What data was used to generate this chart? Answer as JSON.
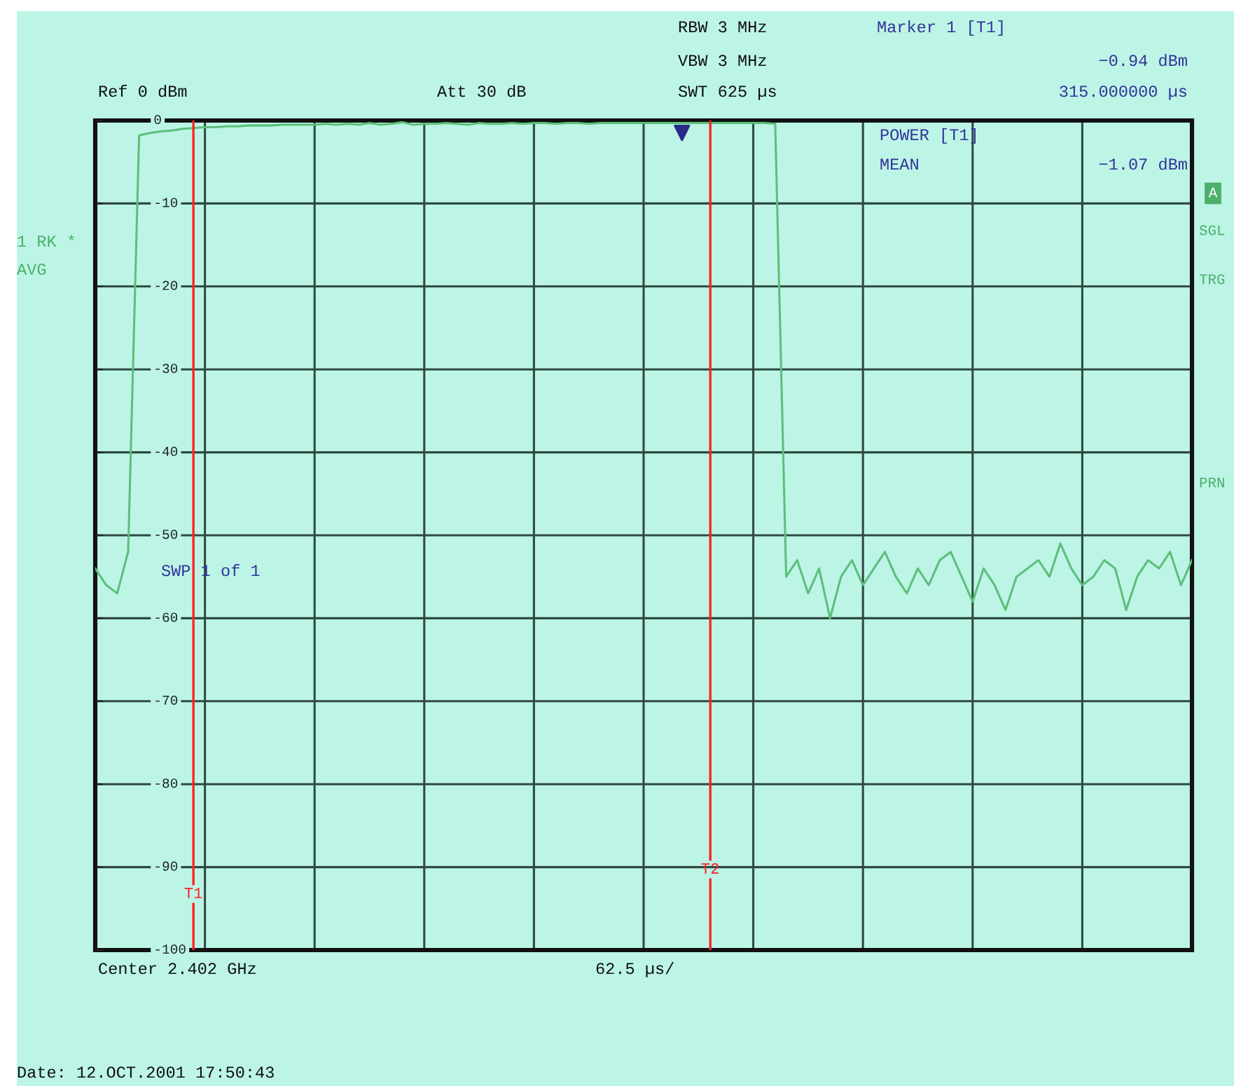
{
  "chart_data": {
    "type": "line",
    "categories": [
      null,
      null,
      null,
      null,
      null,
      null,
      null,
      null,
      null,
      null,
      null,
      null,
      null,
      null,
      null,
      null,
      null,
      null,
      null,
      null,
      null,
      null,
      null,
      null,
      null,
      null,
      null,
      null,
      null,
      null,
      null,
      null,
      null,
      null,
      null,
      null,
      null,
      null,
      null,
      null,
      null,
      null,
      null,
      null,
      null,
      null,
      null,
      null,
      null,
      null,
      null,
      null,
      null,
      null,
      null,
      null,
      null,
      null,
      null,
      null,
      null,
      null,
      null,
      null,
      null,
      null,
      null,
      null,
      null,
      null,
      null,
      null,
      null,
      null,
      null,
      null,
      null,
      null,
      null,
      null,
      null,
      null,
      null,
      null,
      null,
      null,
      null,
      null,
      null,
      null,
      null,
      null,
      null,
      null,
      null,
      null,
      null,
      null,
      null,
      null,
      null
    ],
    "series": [
      {
        "color": "#5cbf7a",
        "values": [
          -54,
          -56,
          -57,
          -52,
          -1.8,
          -1.5,
          -1.3,
          -1.2,
          -1.0,
          -0.9,
          -0.8,
          -0.8,
          -0.7,
          -0.7,
          -0.6,
          -0.6,
          -0.6,
          -0.5,
          -0.5,
          -0.5,
          -0.5,
          -0.4,
          -0.5,
          -0.4,
          -0.5,
          -0.3,
          -0.5,
          -0.4,
          -0.2,
          -0.5,
          -0.4,
          -0.4,
          -0.3,
          -0.4,
          -0.5,
          -0.3,
          -0.4,
          -0.4,
          -0.3,
          -0.4,
          -0.3,
          -0.3,
          -0.4,
          -0.3,
          -0.3,
          -0.4,
          -0.3,
          -0.3,
          -0.3,
          -0.3,
          -0.3,
          -0.3,
          -0.3,
          -0.3,
          -0.3,
          -0.3,
          -0.3,
          -0.3,
          -0.3,
          -0.3,
          -0.3,
          -0.3,
          -0.4,
          -55,
          -53,
          -57,
          -54,
          -60,
          -55,
          -53,
          -56,
          -54,
          -52,
          -55,
          -57,
          -54,
          -56,
          -53,
          -52,
          -55,
          -58,
          -54,
          -56,
          -59,
          -55,
          -54,
          -53,
          -55,
          -51,
          -54,
          -56,
          -55,
          -53,
          -54,
          -59,
          -55,
          -53,
          -54,
          -52,
          -56,
          -53
        ]
      }
    ],
    "ylim": [
      -100,
      0
    ],
    "yticks": [
      0,
      -10,
      -20,
      -30,
      -40,
      -50,
      -60,
      -70,
      -80,
      -90,
      -100
    ],
    "tick_labels": "y",
    "grid": true,
    "legend": false,
    "annotations": [
      "RBW 3 MHz",
      "VBW 3 MHz",
      "SWT 625 µs",
      "Ref 0 dBm",
      "Att 30 dB",
      "Marker 1 [T1]",
      "−0.94 dBm",
      "315.000000 µs",
      "POWER [T1]",
      "MEAN",
      "−1.07 dBm",
      "SWP 1 of 1",
      "1 RK *",
      "AVG",
      "A",
      "SGL",
      "TRG",
      "PRN",
      "Center 2.402 GHz",
      "62.5 µs/",
      "Date: 12.OCT.2001 17:50:43",
      "T1",
      "T2"
    ]
  }
}
